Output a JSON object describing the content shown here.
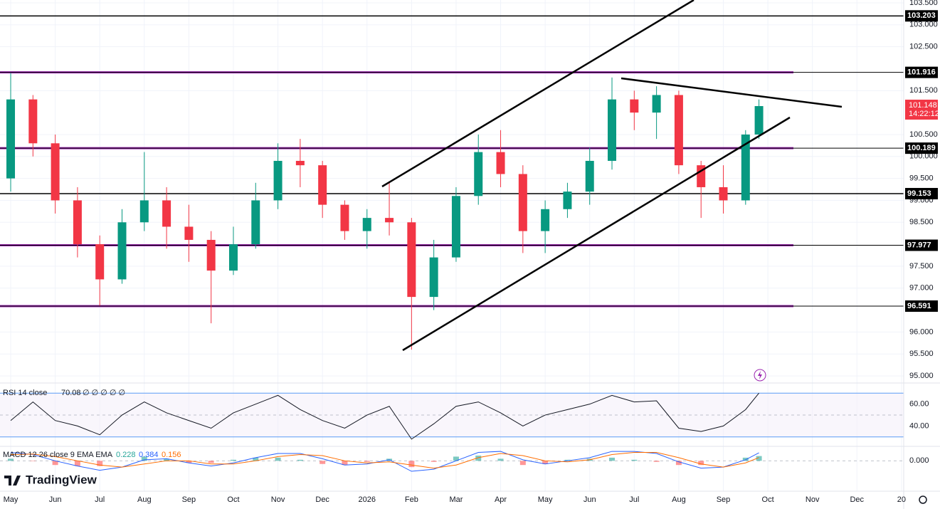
{
  "brand": "TradingView",
  "chart_data": [
    {
      "type": "candlestick",
      "x": [
        0,
        0.5,
        1,
        1.5,
        2,
        2.5,
        3,
        3.5,
        4,
        4.5,
        5,
        5.5,
        6,
        6.5,
        7,
        7.5,
        8,
        8.5,
        9,
        9.5,
        10,
        10.5,
        11,
        11.5,
        12,
        12.5,
        13,
        13.5,
        14,
        14.5,
        15,
        15.5,
        16,
        16.5,
        16.8
      ],
      "open": [
        99.5,
        101.3,
        100.3,
        99.0,
        98.0,
        97.2,
        98.5,
        99.0,
        98.4,
        98.1,
        97.4,
        98.0,
        99.0,
        99.9,
        99.8,
        98.9,
        98.3,
        98.6,
        98.5,
        96.8,
        97.7,
        99.1,
        100.1,
        99.6,
        98.3,
        98.8,
        99.2,
        99.9,
        101.3,
        101.0,
        101.4,
        99.8,
        99.3,
        99.0,
        100.5
      ],
      "high": [
        101.9,
        101.4,
        100.5,
        99.3,
        98.2,
        98.8,
        100.1,
        99.3,
        98.9,
        98.3,
        98.4,
        99.4,
        100.3,
        100.4,
        99.9,
        99.0,
        98.8,
        99.4,
        98.6,
        98.1,
        99.3,
        100.5,
        100.6,
        99.8,
        99.0,
        99.4,
        100.2,
        101.8,
        101.5,
        101.6,
        101.5,
        99.9,
        99.8,
        100.6,
        101.3
      ],
      "low": [
        99.2,
        100.0,
        98.7,
        97.7,
        96.6,
        97.1,
        98.3,
        97.9,
        97.6,
        96.2,
        97.3,
        97.9,
        98.8,
        99.3,
        98.6,
        98.1,
        97.9,
        98.2,
        95.6,
        96.5,
        97.6,
        98.9,
        99.3,
        97.8,
        97.8,
        98.6,
        98.9,
        99.7,
        100.6,
        100.4,
        99.6,
        98.6,
        98.7,
        98.9,
        100.4
      ],
      "close": [
        101.3,
        100.3,
        99.0,
        98.0,
        97.2,
        98.5,
        99.0,
        98.4,
        98.1,
        97.4,
        98.0,
        99.0,
        99.9,
        99.8,
        98.9,
        98.3,
        98.6,
        98.5,
        96.8,
        97.7,
        99.1,
        100.1,
        99.6,
        98.3,
        98.8,
        99.2,
        99.9,
        101.3,
        101.0,
        101.4,
        99.8,
        99.3,
        99.0,
        100.5,
        101.148
      ],
      "up_color": "#089981",
      "down_color": "#f23645",
      "xlim": [
        -0.24,
        20.05
      ],
      "xticks": [
        {
          "value": 0,
          "label": "May"
        },
        {
          "value": 1,
          "label": "Jun"
        },
        {
          "value": 2,
          "label": "Jul"
        },
        {
          "value": 3,
          "label": "Aug"
        },
        {
          "value": 4,
          "label": "Sep"
        },
        {
          "value": 5,
          "label": "Oct"
        },
        {
          "value": 6,
          "label": "Nov"
        },
        {
          "value": 7,
          "label": "Dec"
        },
        {
          "value": 8,
          "label": "2026"
        },
        {
          "value": 9,
          "label": "Feb"
        },
        {
          "value": 10,
          "label": "Mar"
        },
        {
          "value": 11,
          "label": "Apr"
        },
        {
          "value": 12,
          "label": "May"
        },
        {
          "value": 13,
          "label": "Jun"
        },
        {
          "value": 14,
          "label": "Jul"
        },
        {
          "value": 15,
          "label": "Aug"
        },
        {
          "value": 16,
          "label": "Sep"
        },
        {
          "value": 17,
          "label": "Oct"
        },
        {
          "value": 18,
          "label": "Nov"
        },
        {
          "value": 19,
          "label": "Dec"
        },
        {
          "value": 20,
          "label": "20"
        }
      ],
      "ylim": [
        94.839,
        103.565
      ],
      "yticks": [
        {
          "value": 103.5,
          "label": "103.500"
        },
        {
          "value": 103,
          "label": "103.000"
        },
        {
          "value": 102.5,
          "label": "102.500"
        },
        {
          "value": 101.5,
          "label": "101.500"
        },
        {
          "value": 100.5,
          "label": "100.500"
        },
        {
          "value": 100,
          "label": "100.000"
        },
        {
          "value": 99.5,
          "label": "99.500"
        },
        {
          "value": 99,
          "label": "99.000"
        },
        {
          "value": 98.5,
          "label": "98.500"
        },
        {
          "value": 97.5,
          "label": "97.500"
        },
        {
          "value": 97,
          "label": "97.000"
        },
        {
          "value": 96,
          "label": "96.000"
        },
        {
          "value": 95.5,
          "label": "95.500"
        },
        {
          "value": 95,
          "label": "95.000"
        }
      ],
      "grid": true,
      "levels": [
        {
          "value": 103.203,
          "color": "#000000"
        },
        {
          "value": 101.916,
          "color": "#9c27b0"
        },
        {
          "value": 100.189,
          "color": "#9c27b0"
        },
        {
          "value": 99.153,
          "color": "#000000"
        },
        {
          "value": 97.977,
          "color": "#9c27b0"
        },
        {
          "value": 96.591,
          "color": "#9c27b0"
        }
      ],
      "last_price": 101.148,
      "countdown": "14:22:12"
    },
    {
      "type": "line",
      "title": "RSI 14 close",
      "legend_extra": "∅ ∅ ∅ ∅ ∅",
      "last_value": 70.08,
      "x": [
        0,
        0.5,
        1,
        1.5,
        2,
        2.5,
        3,
        3.5,
        4,
        4.5,
        5,
        5.5,
        6,
        6.5,
        7,
        7.5,
        8,
        8.5,
        9,
        9.5,
        10,
        10.5,
        11,
        11.5,
        12,
        12.5,
        13,
        13.5,
        14,
        14.5,
        15,
        15.5,
        16,
        16.5,
        16.8
      ],
      "series": [
        {
          "color": "#131722",
          "values": [
            45,
            62,
            45,
            40,
            32,
            50,
            62,
            52,
            45,
            38,
            52,
            60,
            68,
            55,
            45,
            38,
            50,
            58,
            28,
            42,
            58,
            62,
            52,
            40,
            50,
            55,
            60,
            68,
            62,
            63,
            38,
            35,
            40,
            55,
            70.08
          ]
        }
      ],
      "ylim": [
        21.4,
        79.3
      ],
      "yticks": [
        {
          "value": 60,
          "label": "60.00"
        },
        {
          "value": 40,
          "label": "40.00"
        }
      ],
      "bands": [
        70,
        50,
        30
      ]
    },
    {
      "type": "macd",
      "title": "MACD 12 26 close 9 EMA EMA",
      "x": [
        0,
        0.5,
        1,
        1.5,
        2,
        2.5,
        3,
        3.5,
        4,
        4.5,
        5,
        5.5,
        6,
        6.5,
        7,
        7.5,
        8,
        8.5,
        9,
        9.5,
        10,
        10.5,
        11,
        11.5,
        12,
        12.5,
        13,
        13.5,
        14,
        14.5,
        15,
        15.5,
        16,
        16.5,
        16.8
      ],
      "series": [
        {
          "kind": "histogram",
          "color": "#26a69a",
          "down_color": "#ff5252",
          "values": [
            0.1,
            -0.02,
            -0.2,
            -0.25,
            -0.25,
            0.0,
            0.2,
            0.1,
            -0.1,
            -0.1,
            0.05,
            0.15,
            0.15,
            0.05,
            -0.15,
            -0.2,
            -0.05,
            0.1,
            -0.3,
            -0.05,
            0.2,
            0.25,
            0.1,
            -0.2,
            -0.15,
            0.05,
            0.1,
            0.15,
            0.05,
            -0.05,
            -0.2,
            -0.2,
            0.0,
            0.15,
            0.228
          ]
        },
        {
          "kind": "line",
          "color": "#2962ff",
          "values": [
            0.4,
            0.3,
            0.0,
            -0.25,
            -0.45,
            -0.3,
            0.05,
            0.1,
            -0.1,
            -0.25,
            -0.1,
            0.15,
            0.35,
            0.35,
            0.1,
            -0.2,
            -0.15,
            0.05,
            -0.5,
            -0.4,
            0.0,
            0.4,
            0.45,
            0.05,
            -0.15,
            0.0,
            0.15,
            0.45,
            0.45,
            0.35,
            -0.05,
            -0.35,
            -0.3,
            0.05,
            0.384
          ]
        },
        {
          "kind": "line",
          "color": "#ff6d00",
          "values": [
            0.3,
            0.32,
            0.2,
            0.0,
            -0.2,
            -0.3,
            -0.15,
            0.0,
            0.0,
            -0.15,
            -0.15,
            0.0,
            0.2,
            0.3,
            0.25,
            0.0,
            -0.1,
            -0.05,
            -0.2,
            -0.35,
            -0.2,
            0.15,
            0.35,
            0.25,
            0.0,
            -0.05,
            0.05,
            0.3,
            0.4,
            0.4,
            0.15,
            -0.15,
            -0.3,
            -0.1,
            0.156
          ]
        }
      ],
      "ylim": [
        -1.45,
        0.69
      ],
      "yticks": [
        {
          "value": 0,
          "label": "0.000"
        }
      ]
    }
  ]
}
